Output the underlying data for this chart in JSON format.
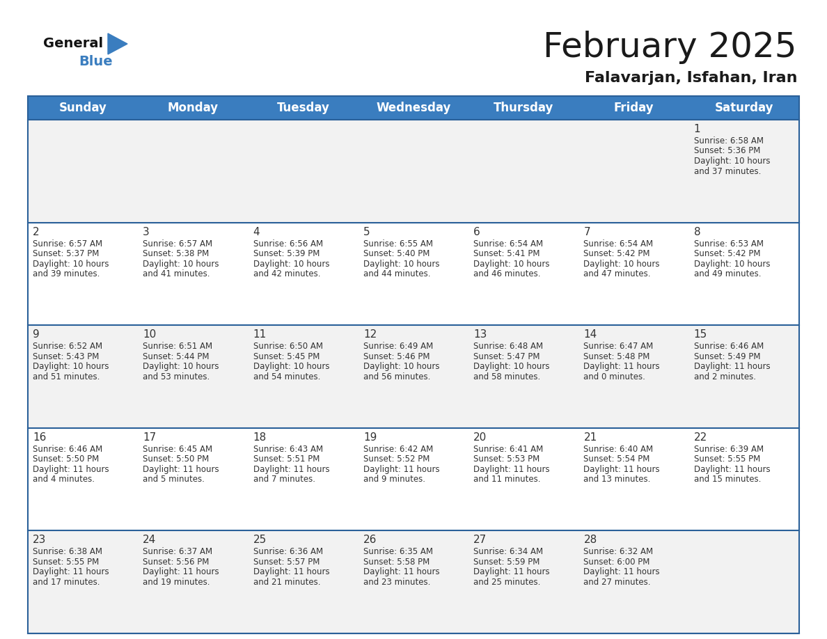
{
  "title": "February 2025",
  "subtitle": "Falavarjan, Isfahan, Iran",
  "days_of_week": [
    "Sunday",
    "Monday",
    "Tuesday",
    "Wednesday",
    "Thursday",
    "Friday",
    "Saturday"
  ],
  "header_bg": "#3a7dbf",
  "header_text": "#ffffff",
  "cell_bg_odd": "#f2f2f2",
  "cell_bg_even": "#ffffff",
  "border_color": "#2a6099",
  "text_color": "#333333",
  "day_num_color": "#333333",
  "title_color": "#1a1a1a",
  "subtitle_color": "#1a1a1a",
  "title_fontsize": 36,
  "subtitle_fontsize": 16,
  "header_fontsize": 12,
  "cell_day_fontsize": 11,
  "cell_text_fontsize": 8.5,
  "calendar_data": [
    [
      {
        "day": null,
        "sunrise": null,
        "sunset": null,
        "daylight": null
      },
      {
        "day": null,
        "sunrise": null,
        "sunset": null,
        "daylight": null
      },
      {
        "day": null,
        "sunrise": null,
        "sunset": null,
        "daylight": null
      },
      {
        "day": null,
        "sunrise": null,
        "sunset": null,
        "daylight": null
      },
      {
        "day": null,
        "sunrise": null,
        "sunset": null,
        "daylight": null
      },
      {
        "day": null,
        "sunrise": null,
        "sunset": null,
        "daylight": null
      },
      {
        "day": 1,
        "sunrise": "6:58 AM",
        "sunset": "5:36 PM",
        "daylight": "10 hours\nand 37 minutes."
      }
    ],
    [
      {
        "day": 2,
        "sunrise": "6:57 AM",
        "sunset": "5:37 PM",
        "daylight": "10 hours\nand 39 minutes."
      },
      {
        "day": 3,
        "sunrise": "6:57 AM",
        "sunset": "5:38 PM",
        "daylight": "10 hours\nand 41 minutes."
      },
      {
        "day": 4,
        "sunrise": "6:56 AM",
        "sunset": "5:39 PM",
        "daylight": "10 hours\nand 42 minutes."
      },
      {
        "day": 5,
        "sunrise": "6:55 AM",
        "sunset": "5:40 PM",
        "daylight": "10 hours\nand 44 minutes."
      },
      {
        "day": 6,
        "sunrise": "6:54 AM",
        "sunset": "5:41 PM",
        "daylight": "10 hours\nand 46 minutes."
      },
      {
        "day": 7,
        "sunrise": "6:54 AM",
        "sunset": "5:42 PM",
        "daylight": "10 hours\nand 47 minutes."
      },
      {
        "day": 8,
        "sunrise": "6:53 AM",
        "sunset": "5:42 PM",
        "daylight": "10 hours\nand 49 minutes."
      }
    ],
    [
      {
        "day": 9,
        "sunrise": "6:52 AM",
        "sunset": "5:43 PM",
        "daylight": "10 hours\nand 51 minutes."
      },
      {
        "day": 10,
        "sunrise": "6:51 AM",
        "sunset": "5:44 PM",
        "daylight": "10 hours\nand 53 minutes."
      },
      {
        "day": 11,
        "sunrise": "6:50 AM",
        "sunset": "5:45 PM",
        "daylight": "10 hours\nand 54 minutes."
      },
      {
        "day": 12,
        "sunrise": "6:49 AM",
        "sunset": "5:46 PM",
        "daylight": "10 hours\nand 56 minutes."
      },
      {
        "day": 13,
        "sunrise": "6:48 AM",
        "sunset": "5:47 PM",
        "daylight": "10 hours\nand 58 minutes."
      },
      {
        "day": 14,
        "sunrise": "6:47 AM",
        "sunset": "5:48 PM",
        "daylight": "11 hours\nand 0 minutes."
      },
      {
        "day": 15,
        "sunrise": "6:46 AM",
        "sunset": "5:49 PM",
        "daylight": "11 hours\nand 2 minutes."
      }
    ],
    [
      {
        "day": 16,
        "sunrise": "6:46 AM",
        "sunset": "5:50 PM",
        "daylight": "11 hours\nand 4 minutes."
      },
      {
        "day": 17,
        "sunrise": "6:45 AM",
        "sunset": "5:50 PM",
        "daylight": "11 hours\nand 5 minutes."
      },
      {
        "day": 18,
        "sunrise": "6:43 AM",
        "sunset": "5:51 PM",
        "daylight": "11 hours\nand 7 minutes."
      },
      {
        "day": 19,
        "sunrise": "6:42 AM",
        "sunset": "5:52 PM",
        "daylight": "11 hours\nand 9 minutes."
      },
      {
        "day": 20,
        "sunrise": "6:41 AM",
        "sunset": "5:53 PM",
        "daylight": "11 hours\nand 11 minutes."
      },
      {
        "day": 21,
        "sunrise": "6:40 AM",
        "sunset": "5:54 PM",
        "daylight": "11 hours\nand 13 minutes."
      },
      {
        "day": 22,
        "sunrise": "6:39 AM",
        "sunset": "5:55 PM",
        "daylight": "11 hours\nand 15 minutes."
      }
    ],
    [
      {
        "day": 23,
        "sunrise": "6:38 AM",
        "sunset": "5:55 PM",
        "daylight": "11 hours\nand 17 minutes."
      },
      {
        "day": 24,
        "sunrise": "6:37 AM",
        "sunset": "5:56 PM",
        "daylight": "11 hours\nand 19 minutes."
      },
      {
        "day": 25,
        "sunrise": "6:36 AM",
        "sunset": "5:57 PM",
        "daylight": "11 hours\nand 21 minutes."
      },
      {
        "day": 26,
        "sunrise": "6:35 AM",
        "sunset": "5:58 PM",
        "daylight": "11 hours\nand 23 minutes."
      },
      {
        "day": 27,
        "sunrise": "6:34 AM",
        "sunset": "5:59 PM",
        "daylight": "11 hours\nand 25 minutes."
      },
      {
        "day": 28,
        "sunrise": "6:32 AM",
        "sunset": "6:00 PM",
        "daylight": "11 hours\nand 27 minutes."
      },
      {
        "day": null,
        "sunrise": null,
        "sunset": null,
        "daylight": null
      }
    ]
  ],
  "logo_color_general": "#111111",
  "logo_color_blue": "#3a7dbf",
  "logo_triangle_color": "#3a7dbf"
}
